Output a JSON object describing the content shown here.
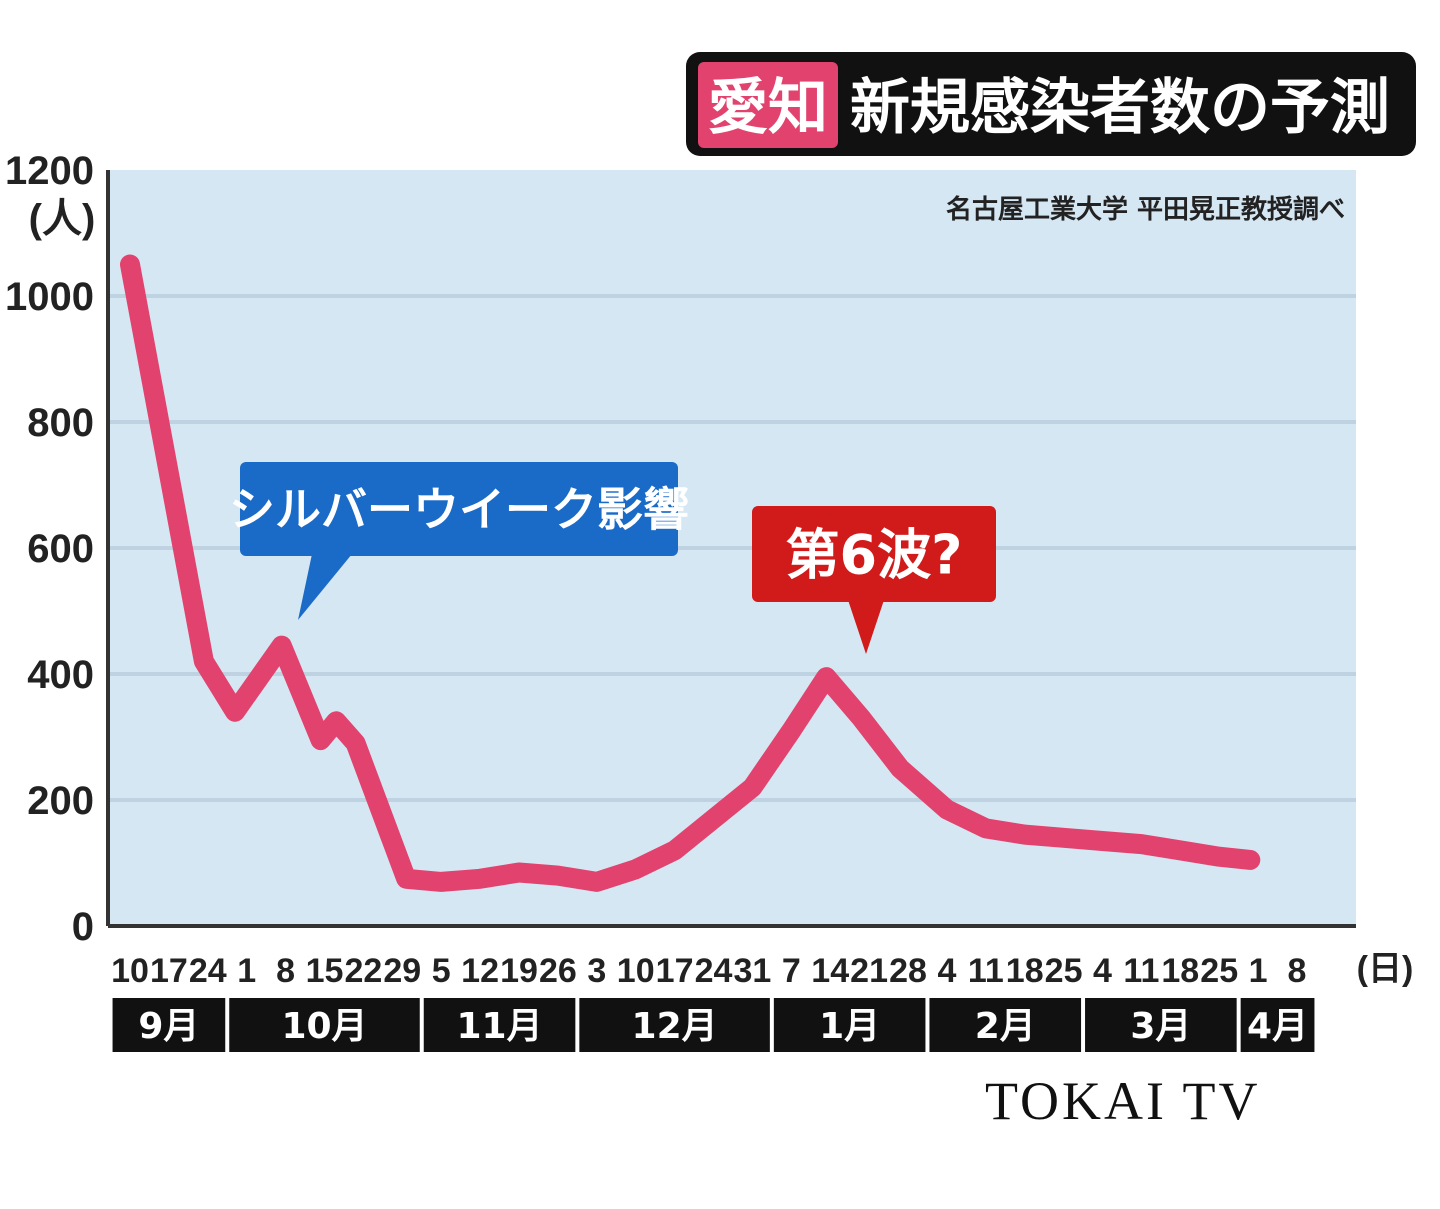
{
  "title": {
    "region": "愛知",
    "main": "新規感染者数の予測"
  },
  "source": "名古屋工業大学 平田晃正教授調べ",
  "watermark": "TOKAI TV",
  "colors": {
    "line": "#e2436e",
    "plot_bg": "#d6e7f4",
    "grid": "#bfd2e2",
    "annot_blue": "#1a6bc8",
    "annot_red": "#d11a1a",
    "region_bg": "#e2436e",
    "month_bar": "#111111"
  },
  "annotations": [
    {
      "text": "シルバーウイーク影響",
      "color": "blue",
      "x_index": 4
    },
    {
      "text": "第6波?",
      "color": "red",
      "x_index": 18
    }
  ],
  "chart_data": {
    "type": "line",
    "ylabel": "(人)",
    "ylim": [
      0,
      1200
    ],
    "yticks": [
      0,
      200,
      400,
      600,
      800,
      1000,
      1200
    ],
    "x_unit": "(日)",
    "x_ticks": [
      "10",
      "17",
      "24",
      "1",
      "8",
      "15",
      "22",
      "29",
      "5",
      "12",
      "19",
      "26",
      "3",
      "10",
      "17",
      "24",
      "31",
      "7",
      "14",
      "21",
      "28",
      "4",
      "11",
      "18",
      "25",
      "4",
      "11",
      "18",
      "25",
      "1",
      "8"
    ],
    "months": [
      {
        "label": "9月",
        "start": 0,
        "end": 2
      },
      {
        "label": "10月",
        "start": 3,
        "end": 7
      },
      {
        "label": "11月",
        "start": 8,
        "end": 11
      },
      {
        "label": "12月",
        "start": 12,
        "end": 16
      },
      {
        "label": "1月",
        "start": 17,
        "end": 20
      },
      {
        "label": "2月",
        "start": 21,
        "end": 24
      },
      {
        "label": "3月",
        "start": 25,
        "end": 28
      },
      {
        "label": "4月",
        "start": 29,
        "end": 30
      }
    ],
    "grid": true,
    "series": [
      {
        "points": [
          [
            0,
            1050
          ],
          [
            1.9,
            420
          ],
          [
            2.7,
            340
          ],
          [
            3.9,
            445
          ],
          [
            4.9,
            295
          ],
          [
            5.3,
            325
          ],
          [
            5.8,
            290
          ],
          [
            7.1,
            75
          ],
          [
            8.0,
            70
          ],
          [
            9.0,
            75
          ],
          [
            10.0,
            85
          ],
          [
            11.0,
            80
          ],
          [
            12.0,
            70
          ],
          [
            13.0,
            90
          ],
          [
            14.0,
            120
          ],
          [
            15.0,
            170
          ],
          [
            16.0,
            220
          ],
          [
            17.0,
            310
          ],
          [
            17.9,
            395
          ],
          [
            18.8,
            330
          ],
          [
            19.8,
            250
          ],
          [
            21.0,
            185
          ],
          [
            22.0,
            155
          ],
          [
            23.0,
            145
          ],
          [
            24.0,
            140
          ],
          [
            25.0,
            135
          ],
          [
            26.0,
            130
          ],
          [
            27.0,
            120
          ],
          [
            28.0,
            110
          ],
          [
            28.8,
            105
          ]
        ]
      }
    ]
  }
}
